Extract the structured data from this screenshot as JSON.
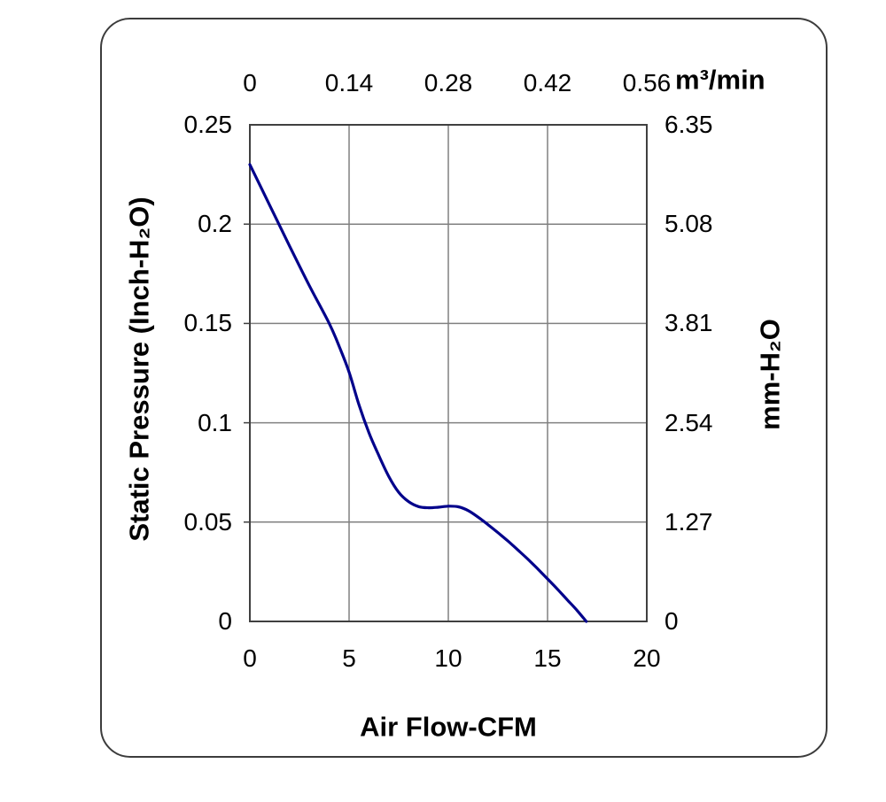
{
  "chart_data": {
    "type": "line",
    "title": "",
    "grid": true,
    "legend": "none",
    "axes": {
      "bottom": {
        "label": "Air Flow-CFM",
        "ticks": [
          "0",
          "5",
          "10",
          "15",
          "20"
        ],
        "range": [
          0,
          20
        ]
      },
      "top": {
        "label": "m³/min",
        "ticks": [
          "0",
          "0.14",
          "0.28",
          "0.42",
          "0.56"
        ],
        "range": [
          0,
          0.56
        ]
      },
      "left": {
        "label": "Static Pressure (Inch-H₂O)",
        "ticks": [
          "0.25",
          "0.2",
          "0.15",
          "0.1",
          "0.05",
          "0"
        ],
        "range": [
          0,
          0.25
        ]
      },
      "right": {
        "label": "mm-H₂O",
        "ticks": [
          "6.35",
          "5.08",
          "3.81",
          "2.54",
          "1.27",
          "0"
        ],
        "range": [
          0,
          6.35
        ]
      }
    },
    "series": [
      {
        "name": "static-pressure-vs-airflow-curve",
        "color": "#00008B",
        "x_unit": "CFM",
        "y_unit": "Inch-H2O",
        "points": [
          [
            0,
            0.23
          ],
          [
            1,
            0.2095
          ],
          [
            2,
            0.189
          ],
          [
            3,
            0.169
          ],
          [
            4,
            0.15
          ],
          [
            4.5,
            0.1385
          ],
          [
            5,
            0.1255
          ],
          [
            5.5,
            0.109
          ],
          [
            6,
            0.095
          ],
          [
            6.5,
            0.0835
          ],
          [
            7,
            0.073
          ],
          [
            7.5,
            0.065
          ],
          [
            8,
            0.0603
          ],
          [
            8.5,
            0.0578
          ],
          [
            9,
            0.0572
          ],
          [
            9.5,
            0.0575
          ],
          [
            10,
            0.058
          ],
          [
            10.5,
            0.0577
          ],
          [
            11,
            0.0558
          ],
          [
            11.5,
            0.0525
          ],
          [
            12,
            0.0487
          ],
          [
            12.5,
            0.0447
          ],
          [
            13,
            0.0405
          ],
          [
            13.5,
            0.036
          ],
          [
            14,
            0.0314
          ],
          [
            14.5,
            0.0265
          ],
          [
            15,
            0.0214
          ],
          [
            15.5,
            0.0162
          ],
          [
            16,
            0.0108
          ],
          [
            16.5,
            0.0054
          ],
          [
            16.95,
            0
          ]
        ]
      }
    ]
  },
  "colors": {
    "curve": "#00008B",
    "gridline": "#808080",
    "plot_border": "#404040",
    "frame_border": "#3c3c3c",
    "text": "#000000",
    "background": "#ffffff"
  }
}
